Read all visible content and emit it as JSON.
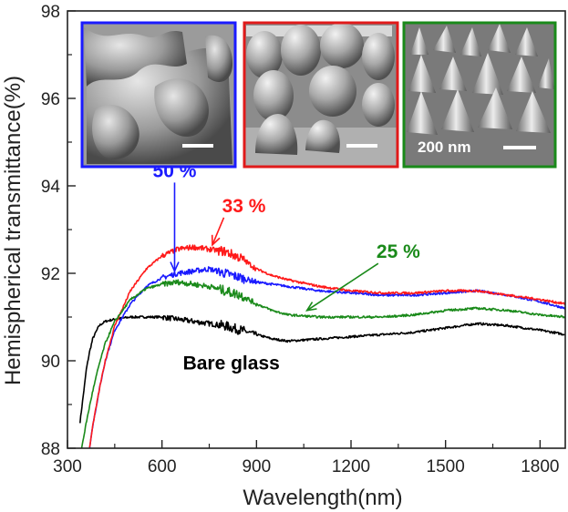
{
  "chart_data": {
    "type": "line",
    "xlabel": "Wavelength(nm)",
    "ylabel": "Hemispherical transmittance(%)",
    "xlim": [
      300,
      1880
    ],
    "ylim": [
      88,
      98
    ],
    "xticks": [
      "300",
      "600",
      "900",
      "1200",
      "1500",
      "1800"
    ],
    "yticks": [
      "88",
      "90",
      "92",
      "94",
      "96",
      "98"
    ],
    "grid": false,
    "series": [
      {
        "name": "Bare glass",
        "color": "#000000",
        "x": [
          340,
          350,
          360,
          370,
          380,
          400,
          420,
          450,
          500,
          550,
          600,
          650,
          700,
          750,
          800,
          850,
          900,
          950,
          1000,
          1100,
          1200,
          1300,
          1400,
          1500,
          1600,
          1700,
          1800,
          1880
        ],
        "y": [
          88.6,
          89.2,
          89.8,
          90.2,
          90.5,
          90.8,
          90.9,
          90.95,
          91.0,
          91.0,
          91.0,
          90.95,
          90.9,
          90.85,
          90.8,
          90.7,
          90.6,
          90.5,
          90.45,
          90.5,
          90.55,
          90.6,
          90.65,
          90.75,
          90.85,
          90.8,
          90.7,
          90.6
        ]
      },
      {
        "name": "50 %",
        "color": "#1a1aff",
        "x": [
          370,
          380,
          400,
          420,
          450,
          500,
          550,
          600,
          650,
          700,
          750,
          800,
          850,
          900,
          950,
          1000,
          1100,
          1200,
          1300,
          1400,
          1500,
          1600,
          1700,
          1800,
          1880
        ],
        "y": [
          88.0,
          88.5,
          89.3,
          90.0,
          90.7,
          91.3,
          91.7,
          91.9,
          92.0,
          92.05,
          92.1,
          92.0,
          91.9,
          91.8,
          91.75,
          91.7,
          91.6,
          91.55,
          91.5,
          91.5,
          91.55,
          91.6,
          91.5,
          91.35,
          91.2
        ]
      },
      {
        "name": "33 %",
        "color": "#ff1a1a",
        "x": [
          370,
          380,
          400,
          420,
          450,
          500,
          550,
          600,
          650,
          700,
          750,
          800,
          850,
          900,
          950,
          1000,
          1100,
          1200,
          1300,
          1400,
          1500,
          1600,
          1700,
          1800,
          1880
        ],
        "y": [
          88.0,
          88.5,
          89.3,
          90.0,
          90.8,
          91.6,
          92.1,
          92.4,
          92.55,
          92.6,
          92.55,
          92.5,
          92.35,
          92.1,
          91.95,
          91.85,
          91.7,
          91.6,
          91.55,
          91.55,
          91.6,
          91.6,
          91.5,
          91.4,
          91.3
        ]
      },
      {
        "name": "25 %",
        "color": "#1a8a1a",
        "x": [
          345,
          360,
          380,
          400,
          420,
          450,
          500,
          550,
          600,
          650,
          700,
          750,
          800,
          850,
          900,
          950,
          1000,
          1100,
          1200,
          1300,
          1400,
          1500,
          1600,
          1700,
          1800,
          1880
        ],
        "y": [
          88.0,
          88.6,
          89.3,
          89.9,
          90.4,
          90.9,
          91.4,
          91.65,
          91.75,
          91.8,
          91.75,
          91.7,
          91.6,
          91.5,
          91.3,
          91.15,
          91.05,
          91.0,
          91.0,
          91.0,
          91.05,
          91.15,
          91.2,
          91.15,
          91.05,
          91.0
        ]
      }
    ],
    "annotations": [
      {
        "text": "50 %",
        "color": "#1a1aff",
        "text_x": 640,
        "text_y": 94.2,
        "arrow_x": 640,
        "arrow_y": 92.05
      },
      {
        "text": "33 %",
        "color": "#ff1a1a",
        "text_x": 860,
        "text_y": 93.4,
        "arrow_x": 760,
        "arrow_y": 92.65
      },
      {
        "text": "25 %",
        "color": "#1a8a1a",
        "text_x": 1350,
        "text_y": 92.35,
        "arrow_x": 1060,
        "arrow_y": 91.15
      },
      {
        "text": "Bare glass",
        "color": "#000000",
        "text_x": 820,
        "text_y": 89.8
      }
    ],
    "insets": [
      {
        "name": "sem-inset-50",
        "border": "#1a1aff",
        "label": ""
      },
      {
        "name": "sem-inset-33",
        "border": "#e01a1a",
        "label": ""
      },
      {
        "name": "sem-inset-25",
        "border": "#1a8a1a",
        "label": "200 nm"
      }
    ]
  }
}
